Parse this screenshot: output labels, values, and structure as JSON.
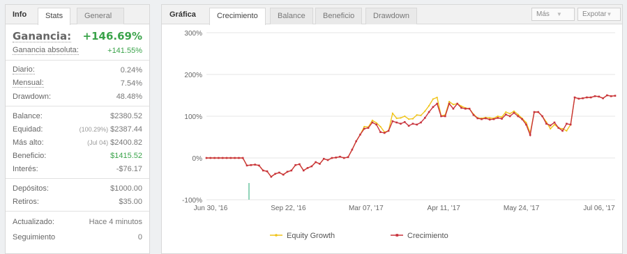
{
  "left": {
    "tabs": {
      "info": "Info",
      "stats": "Stats",
      "general": "General"
    },
    "gain": {
      "label": "Ganancia:",
      "value": "+146.69%"
    },
    "absolute": {
      "label": "Ganancia absoluta:",
      "value": "+141.55%"
    },
    "daily": {
      "label": "Diario:",
      "value": "0.24%"
    },
    "monthly": {
      "label": "Mensual:",
      "value": "7.54%"
    },
    "drawdown": {
      "label": "Drawdown:",
      "value": "48.48%"
    },
    "balance": {
      "label": "Balance:",
      "value": "$2380.52"
    },
    "equity": {
      "label": "Equidad:",
      "prefix": "(100.29%)",
      "value": "$2387.44"
    },
    "highest": {
      "label": "Más alto:",
      "prefix": "(Jul 04)",
      "value": "$2400.82"
    },
    "profit": {
      "label": "Beneficio:",
      "value": "$1415.52"
    },
    "interest": {
      "label": "Interés:",
      "value": "-$76.17"
    },
    "deposits": {
      "label": "Depósitos:",
      "value": "$1000.00"
    },
    "withdrawals": {
      "label": "Retiros:",
      "value": "$35.00"
    },
    "updated": {
      "label": "Actualizado:",
      "value": "Hace 4 minutos"
    },
    "following": {
      "label": "Seguimiento",
      "value": "0"
    }
  },
  "right": {
    "tabs": {
      "chart": "Gráfica",
      "growth": "Crecimiento",
      "balance": "Balance",
      "profit": "Beneficio",
      "drawdown": "Drawdown"
    },
    "more_label": "Más",
    "export_label": "Expotar"
  },
  "colors": {
    "equity": "#f0c419",
    "growth": "#c8323c",
    "gain_green": "#3aa34a",
    "deposit_bar": "#8fd3b8"
  },
  "chart_data": {
    "type": "line",
    "y_tick_labels": [
      "300%",
      "200%",
      "100%",
      "0%",
      "-100%"
    ],
    "ylim": [
      -100,
      300
    ],
    "x_tick_labels": [
      "Jun 30, '16",
      "Sep 22, '16",
      "Mar 07, '17",
      "Apr 11, '17",
      "May 24, '17",
      "Jul 06, '17"
    ],
    "series": [
      {
        "name": "Equity Growth",
        "values": [
          0,
          0,
          0,
          0,
          0,
          0,
          0,
          0,
          0,
          0,
          -18,
          -17,
          -16,
          -18,
          -30,
          -32,
          -45,
          -38,
          -35,
          -40,
          -33,
          -30,
          -17,
          -15,
          -30,
          -24,
          -20,
          -10,
          -14,
          -2,
          -5,
          0,
          1,
          3,
          0,
          2,
          20,
          40,
          56,
          75,
          74,
          90,
          84,
          75,
          62,
          65,
          107,
          95,
          96,
          100,
          93,
          94,
          103,
          102,
          112,
          125,
          141,
          145,
          101,
          103,
          135,
          128,
          130,
          124,
          120,
          118,
          105,
          96,
          95,
          97,
          96,
          95,
          100,
          98,
          110,
          106,
          112,
          104,
          95,
          85,
          60,
          110,
          110,
          100,
          86,
          70,
          80,
          72,
          70,
          65,
          80,
          145,
          142,
          143,
          145,
          145,
          148,
          147,
          143,
          150,
          148,
          149
        ],
        "markers": false
      },
      {
        "name": "Crecimiento",
        "values": [
          0,
          0,
          0,
          0,
          0,
          0,
          0,
          0,
          0,
          0,
          -18,
          -17,
          -16,
          -18,
          -30,
          -32,
          -45,
          -38,
          -35,
          -40,
          -33,
          -30,
          -17,
          -15,
          -30,
          -24,
          -20,
          -10,
          -14,
          -2,
          -5,
          0,
          1,
          3,
          0,
          2,
          20,
          40,
          56,
          70,
          72,
          85,
          80,
          62,
          60,
          65,
          88,
          85,
          82,
          86,
          77,
          82,
          80,
          85,
          96,
          110,
          122,
          130,
          100,
          100,
          130,
          118,
          130,
          120,
          118,
          118,
          103,
          95,
          93,
          95,
          92,
          93,
          96,
          94,
          104,
          100,
          108,
          100,
          93,
          80,
          55,
          110,
          110,
          100,
          82,
          78,
          85,
          72,
          65,
          82,
          80,
          145,
          142,
          143,
          145,
          145,
          148,
          147,
          143,
          150,
          148,
          149
        ],
        "markers": true
      }
    ],
    "deposit_marker": {
      "x_index": 10,
      "value": -60
    }
  }
}
